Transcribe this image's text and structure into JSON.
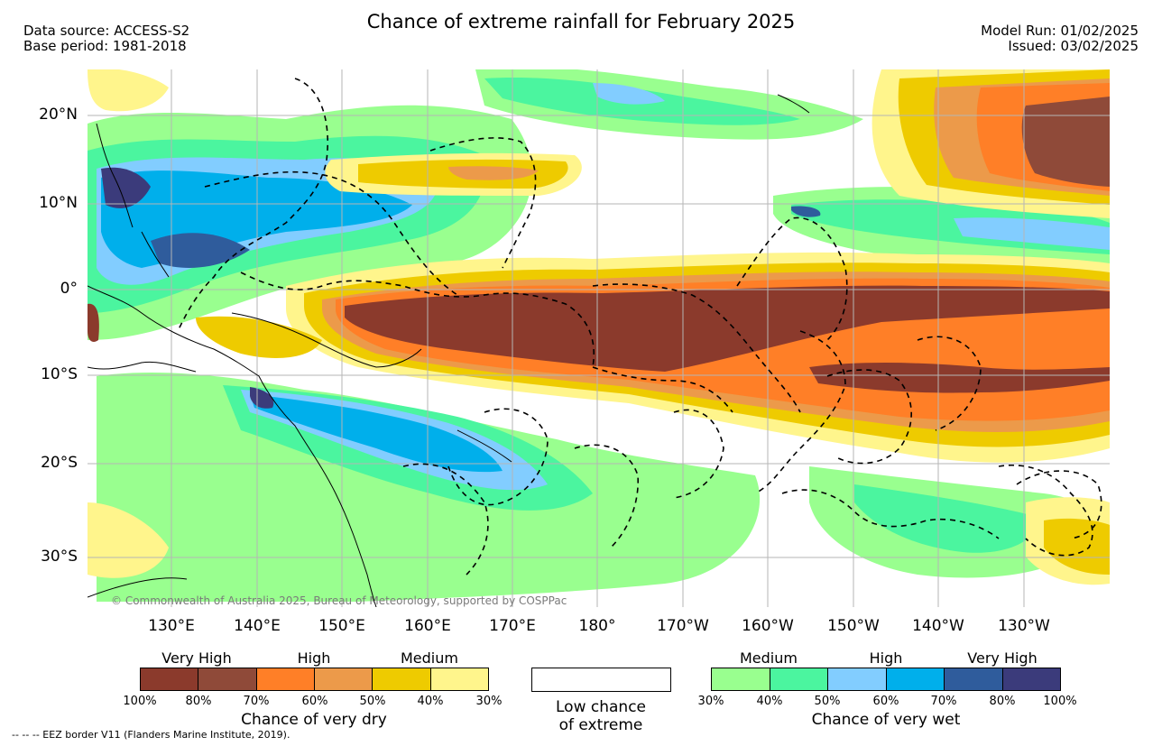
{
  "title": "Chance of extreme rainfall for February 2025",
  "header_left": {
    "line1": "Data source: ACCESS-S2",
    "line2": "Base period: 1981-2018"
  },
  "header_right": {
    "line1": "Model Run: 01/02/2025",
    "line2": "Issued: 03/02/2025"
  },
  "latitude_labels": [
    "20°N",
    "10°N",
    "0°",
    "10°S",
    "20°S",
    "30°S"
  ],
  "longitude_labels": [
    "130°E",
    "140°E",
    "150°E",
    "160°E",
    "170°E",
    "180°",
    "170°W",
    "160°W",
    "150°W",
    "140°W",
    "130°W"
  ],
  "copyright": "© Commonwealth of Australia 2025, Bureau of Meteorology, supported by COSPPac",
  "dry_legend": {
    "caption": "Chance of very dry",
    "categories": [
      "Very High",
      "High",
      "Medium"
    ],
    "ticks": [
      "100%",
      "80%",
      "70%",
      "60%",
      "50%",
      "40%",
      "30%"
    ],
    "colors": [
      "#8b3a2c",
      "#8f4a39",
      "#ff7f27",
      "#ec9a4a",
      "#eecb00",
      "#fff58c"
    ]
  },
  "low_legend": {
    "line1": "Low chance",
    "line2": "of extreme"
  },
  "wet_legend": {
    "caption": "Chance of very wet",
    "categories": [
      "Medium",
      "High",
      "Very High"
    ],
    "ticks": [
      "30%",
      "40%",
      "50%",
      "60%",
      "70%",
      "80%",
      "100%"
    ],
    "colors": [
      "#99ff8f",
      "#4bf59f",
      "#82cdff",
      "#00afeb",
      "#2f5c9c",
      "#3b3b7b"
    ]
  },
  "eez_note": "--  --  -- EEZ border V11 (Flanders Marine Institute, 2019)."
}
